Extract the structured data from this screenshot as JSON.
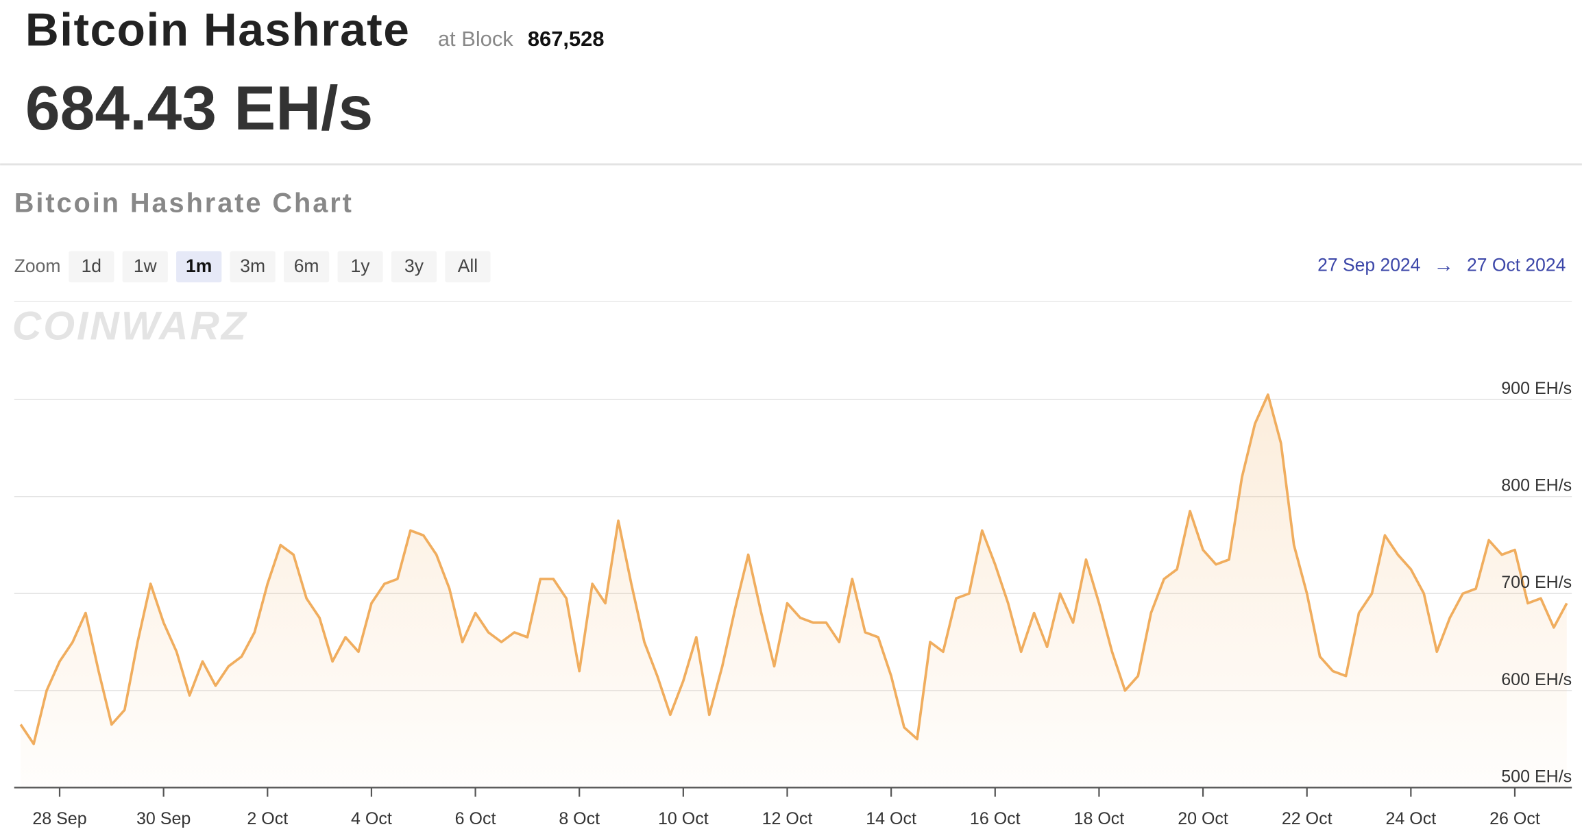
{
  "header": {
    "title": "Bitcoin Hashrate",
    "block_prefix": "at Block",
    "block": "867,528",
    "hashrate": "684.43 EH/s"
  },
  "chart_header": {
    "title": "Bitcoin Hashrate Chart",
    "zoom_label": "Zoom",
    "zoom_options": [
      "1d",
      "1w",
      "1m",
      "3m",
      "6m",
      "1y",
      "3y",
      "All"
    ],
    "active_zoom": "1m",
    "range_start": "27 Sep 2024",
    "range_arrow": "→",
    "range_end": "27 Oct 2024",
    "watermark": "COINWARZ"
  },
  "chart_data": {
    "type": "line",
    "grid": true,
    "categories": [
      null,
      null,
      null,
      "28 Sep",
      null,
      null,
      null,
      null,
      null,
      null,
      null,
      "30 Sep",
      null,
      null,
      null,
      null,
      null,
      null,
      null,
      "2 Oct",
      null,
      null,
      null,
      null,
      null,
      null,
      null,
      "4 Oct",
      null,
      null,
      null,
      null,
      null,
      null,
      null,
      "6 Oct",
      null,
      null,
      null,
      null,
      null,
      null,
      null,
      "8 Oct",
      null,
      null,
      null,
      null,
      null,
      null,
      null,
      "10 Oct",
      null,
      null,
      null,
      null,
      null,
      null,
      null,
      "12 Oct",
      null,
      null,
      null,
      null,
      null,
      null,
      null,
      "14 Oct",
      null,
      null,
      null,
      null,
      null,
      null,
      null,
      "16 Oct",
      null,
      null,
      null,
      null,
      null,
      null,
      null,
      "18 Oct",
      null,
      null,
      null,
      null,
      null,
      null,
      null,
      "20 Oct",
      null,
      null,
      null,
      null,
      null,
      null,
      null,
      "22 Oct",
      null,
      null,
      null,
      null,
      null,
      null,
      null,
      "24 Oct",
      null,
      null,
      null,
      null,
      null,
      null,
      null,
      "26 Oct",
      null,
      null,
      null,
      null
    ],
    "series": [
      {
        "name": "Hashrate",
        "color": "#f0ad5e",
        "values": [
          565,
          545,
          600,
          630,
          650,
          680,
          620,
          565,
          580,
          650,
          710,
          670,
          640,
          595,
          630,
          605,
          625,
          635,
          660,
          710,
          750,
          740,
          695,
          675,
          630,
          655,
          640,
          690,
          710,
          715,
          765,
          760,
          740,
          705,
          650,
          680,
          660,
          650,
          660,
          655,
          715,
          715,
          695,
          620,
          710,
          690,
          775,
          710,
          650,
          615,
          575,
          610,
          655,
          575,
          625,
          685,
          740,
          680,
          625,
          690,
          675,
          670,
          670,
          650,
          715,
          660,
          655,
          615,
          562,
          550,
          650,
          640,
          695,
          700,
          765,
          730,
          690,
          640,
          680,
          645,
          700,
          670,
          735,
          690,
          640,
          600,
          615,
          680,
          715,
          725,
          785,
          745,
          730,
          735,
          820,
          875,
          905,
          855,
          750,
          700,
          635,
          620,
          615,
          680,
          700,
          760,
          740,
          725,
          700,
          640,
          675,
          700,
          705,
          755,
          740,
          745,
          690,
          695,
          665,
          690
        ]
      }
    ],
    "ylim": [
      500,
      1000
    ],
    "yticks": [
      {
        "value": 500,
        "label": "500 EH/s"
      },
      {
        "value": 600,
        "label": "600 EH/s"
      },
      {
        "value": 700,
        "label": "700 EH/s"
      },
      {
        "value": 800,
        "label": "800 EH/s"
      },
      {
        "value": 900,
        "label": "900 EH/s"
      }
    ]
  }
}
